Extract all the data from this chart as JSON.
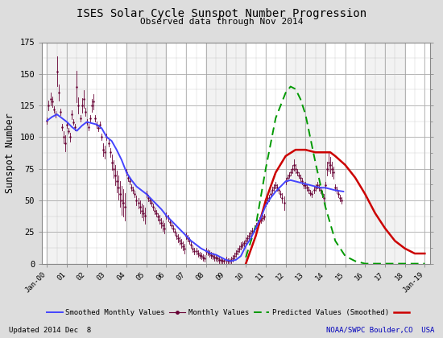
{
  "title": "ISES Solar Cycle Sunspot Number Progression",
  "subtitle": "Observed data through Nov 2014",
  "ylabel": "Sunspot Number",
  "footer_left": "Updated 2014 Dec  8",
  "footer_right": "NOAA/SWPC Boulder,CO  USA",
  "ylim": [
    0,
    175
  ],
  "xlim": [
    -0.25,
    19.25
  ],
  "background_color": "#dddddd",
  "plot_bg_color": "#ffffff",
  "grid_major_color": "#999999",
  "grid_minor_color": "#cccccc",
  "title_color": "#000000",
  "footer_right_color": "#0000bb",
  "smoothed_color": "#4444ff",
  "monthly_color": "#660033",
  "predicted_green_color": "#009900",
  "predicted_red_color": "#cc0000",
  "x_tick_labels": [
    "Jan-00",
    "01",
    "02",
    "03",
    "04",
    "05",
    "06",
    "07",
    "08",
    "09",
    "10",
    "11",
    "12",
    "13",
    "14",
    "15",
    "16",
    "17",
    "18",
    "Jan-19"
  ],
  "x_tick_positions": [
    0,
    1,
    2,
    3,
    4,
    5,
    6,
    7,
    8,
    9,
    10,
    11,
    12,
    13,
    14,
    15,
    16,
    17,
    18,
    19
  ],
  "smooth_t": [
    0.0,
    0.25,
    0.5,
    0.75,
    1.0,
    1.25,
    1.5,
    1.75,
    2.0,
    2.25,
    2.5,
    2.75,
    3.0,
    3.25,
    3.5,
    3.75,
    4.0,
    4.25,
    4.5,
    4.75,
    5.0,
    5.25,
    5.5,
    5.75,
    6.0,
    6.25,
    6.5,
    6.75,
    7.0,
    7.25,
    7.5,
    7.75,
    8.0,
    8.25,
    8.5,
    8.75,
    9.0,
    9.25,
    9.5,
    9.75,
    10.0,
    10.25,
    10.5,
    10.75,
    11.0,
    11.25,
    11.5,
    11.75,
    12.0,
    12.25,
    12.5,
    12.75,
    13.0,
    13.25,
    13.5,
    13.75,
    14.0,
    14.5,
    14.917
  ],
  "smooth_v": [
    113,
    116,
    118,
    115,
    112,
    108,
    105,
    109,
    112,
    111,
    110,
    107,
    100,
    97,
    90,
    82,
    72,
    66,
    61,
    58,
    55,
    51,
    47,
    43,
    38,
    34,
    30,
    26,
    22,
    18,
    15,
    12,
    10,
    8,
    7,
    5,
    3,
    2,
    3,
    6,
    14,
    20,
    28,
    36,
    46,
    52,
    57,
    61,
    65,
    66,
    65,
    64,
    63,
    62,
    61,
    60,
    60,
    58,
    57
  ],
  "monthly_t": [
    0.0,
    0.083,
    0.167,
    0.25,
    0.333,
    0.417,
    0.5,
    0.583,
    0.667,
    0.75,
    0.833,
    0.917,
    1.0,
    1.083,
    1.167,
    1.25,
    1.333,
    1.417,
    1.5,
    1.583,
    1.667,
    1.75,
    1.833,
    1.917,
    2.0,
    2.083,
    2.167,
    2.25,
    2.333,
    2.417,
    2.5,
    2.583,
    2.667,
    2.75,
    2.833,
    2.917,
    3.0,
    3.083,
    3.167,
    3.25,
    3.333,
    3.417,
    3.5,
    3.583,
    3.667,
    3.75,
    3.833,
    3.917,
    4.0,
    4.083,
    4.167,
    4.25,
    4.333,
    4.417,
    4.5,
    4.583,
    4.667,
    4.75,
    4.833,
    4.917,
    5.0,
    5.083,
    5.167,
    5.25,
    5.333,
    5.417,
    5.5,
    5.583,
    5.667,
    5.75,
    5.833,
    5.917,
    6.0,
    6.083,
    6.167,
    6.25,
    6.333,
    6.417,
    6.5,
    6.583,
    6.667,
    6.75,
    6.833,
    6.917,
    7.0,
    7.083,
    7.167,
    7.25,
    7.333,
    7.417,
    7.5,
    7.583,
    7.667,
    7.75,
    7.833,
    7.917,
    8.0,
    8.083,
    8.167,
    8.25,
    8.333,
    8.417,
    8.5,
    8.583,
    8.667,
    8.75,
    8.833,
    8.917,
    9.0,
    9.083,
    9.167,
    9.25,
    9.333,
    9.417,
    9.5,
    9.583,
    9.667,
    9.75,
    9.833,
    9.917,
    10.0,
    10.083,
    10.167,
    10.25,
    10.333,
    10.417,
    10.5,
    10.583,
    10.667,
    10.75,
    10.833,
    10.917,
    11.0,
    11.083,
    11.167,
    11.25,
    11.333,
    11.417,
    11.5,
    11.583,
    11.667,
    11.75,
    11.833,
    11.917,
    12.0,
    12.083,
    12.167,
    12.25,
    12.333,
    12.417,
    12.5,
    12.583,
    12.667,
    12.75,
    12.833,
    12.917,
    13.0,
    13.083,
    13.167,
    13.25,
    13.333,
    13.417,
    13.5,
    13.583,
    13.667,
    13.75,
    13.833,
    13.917,
    14.0,
    14.083,
    14.167,
    14.25,
    14.333,
    14.417,
    14.5,
    14.583,
    14.667,
    14.75,
    14.833
  ],
  "monthly_v": [
    113,
    125,
    130,
    128,
    122,
    118,
    152,
    135,
    120,
    108,
    100,
    95,
    110,
    105,
    100,
    118,
    112,
    108,
    140,
    125,
    115,
    125,
    130,
    120,
    112,
    108,
    115,
    125,
    128,
    115,
    110,
    107,
    110,
    100,
    90,
    88,
    100,
    95,
    88,
    80,
    75,
    70,
    65,
    60,
    55,
    50,
    48,
    45,
    72,
    68,
    65,
    60,
    58,
    55,
    50,
    48,
    45,
    42,
    40,
    38,
    55,
    52,
    50,
    48,
    45,
    42,
    40,
    37,
    35,
    32,
    30,
    28,
    38,
    36,
    33,
    30,
    28,
    25,
    22,
    20,
    18,
    16,
    14,
    12,
    22,
    20,
    18,
    15,
    12,
    10,
    10,
    8,
    7,
    6,
    5,
    4,
    10,
    9,
    8,
    7,
    6,
    5,
    5,
    4,
    3,
    3,
    2,
    2,
    3,
    2,
    2,
    3,
    4,
    6,
    8,
    10,
    12,
    14,
    15,
    16,
    18,
    20,
    22,
    24,
    26,
    28,
    30,
    32,
    34,
    35,
    36,
    37,
    48,
    50,
    52,
    55,
    58,
    60,
    62,
    60,
    58,
    55,
    52,
    48,
    65,
    68,
    70,
    72,
    75,
    78,
    75,
    72,
    70,
    68,
    65,
    62,
    62,
    60,
    58,
    56,
    55,
    58,
    60,
    62,
    60,
    58,
    55,
    52,
    62,
    75,
    80,
    78,
    75,
    72,
    60,
    58,
    55,
    52,
    50
  ],
  "pred_green_t": [
    10.0,
    10.5,
    11.0,
    11.5,
    12.0,
    12.25,
    12.5,
    12.75,
    13.0,
    13.5,
    14.0,
    14.5,
    15.0,
    15.5,
    16.0,
    16.5,
    17.0,
    17.5,
    18.0,
    18.5,
    19.0
  ],
  "pred_green_v": [
    5,
    30,
    75,
    115,
    135,
    140,
    138,
    130,
    118,
    80,
    45,
    18,
    6,
    2,
    0,
    0,
    0,
    0,
    0,
    0,
    0
  ],
  "pred_red_t": [
    10.0,
    10.5,
    11.0,
    11.5,
    12.0,
    12.5,
    13.0,
    13.5,
    14.0,
    14.25,
    14.5,
    15.0,
    15.5,
    16.0,
    16.5,
    17.0,
    17.5,
    18.0,
    18.5,
    19.0
  ],
  "pred_red_v": [
    0,
    22,
    50,
    72,
    85,
    90,
    90,
    88,
    88,
    88,
    85,
    78,
    68,
    55,
    40,
    28,
    18,
    12,
    8,
    8
  ]
}
